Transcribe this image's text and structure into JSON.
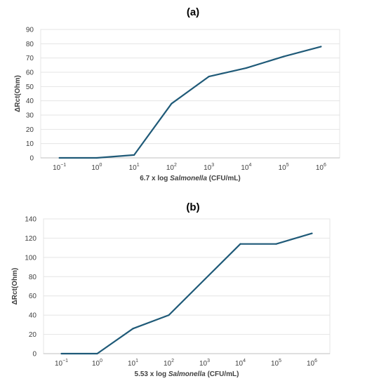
{
  "chart_data": [
    {
      "type": "line",
      "title": "(a)",
      "xlabel_prefix": "6.7 x log ",
      "xlabel_italic": "Salmonella",
      "xlabel_suffix": " (CFU/mL)",
      "ylabel": "ΔRct(Ohm)",
      "x_base": [
        "10",
        "10",
        "10",
        "10",
        "10",
        "10",
        "10",
        "10"
      ],
      "x_exp": [
        "−1",
        "0",
        "1",
        "2",
        "3",
        "4",
        "5",
        "6"
      ],
      "y": [
        0,
        0,
        2,
        38,
        57,
        63,
        71,
        78
      ],
      "ylim": [
        0,
        90
      ],
      "yticks": [
        0,
        10,
        20,
        30,
        40,
        50,
        60,
        70,
        80,
        90
      ],
      "grid": true,
      "line_color": "#1f5a78"
    },
    {
      "type": "line",
      "title": "(b)",
      "xlabel_prefix": "5.53 x log ",
      "xlabel_italic": "Salmonella",
      "xlabel_suffix": " (CFU/mL)",
      "ylabel": "ΔRct(Ohm)",
      "x_base": [
        "10",
        "10",
        "10",
        "10",
        "10",
        "10",
        "10",
        "10"
      ],
      "x_exp": [
        "−1",
        "0",
        "1",
        "2",
        "3",
        "4",
        "5",
        "6"
      ],
      "y": [
        0,
        0,
        26,
        40,
        77,
        114,
        114,
        125
      ],
      "ylim": [
        0,
        140
      ],
      "yticks": [
        0,
        20,
        40,
        60,
        80,
        100,
        120,
        140
      ],
      "grid": true,
      "line_color": "#1f5a78"
    }
  ]
}
